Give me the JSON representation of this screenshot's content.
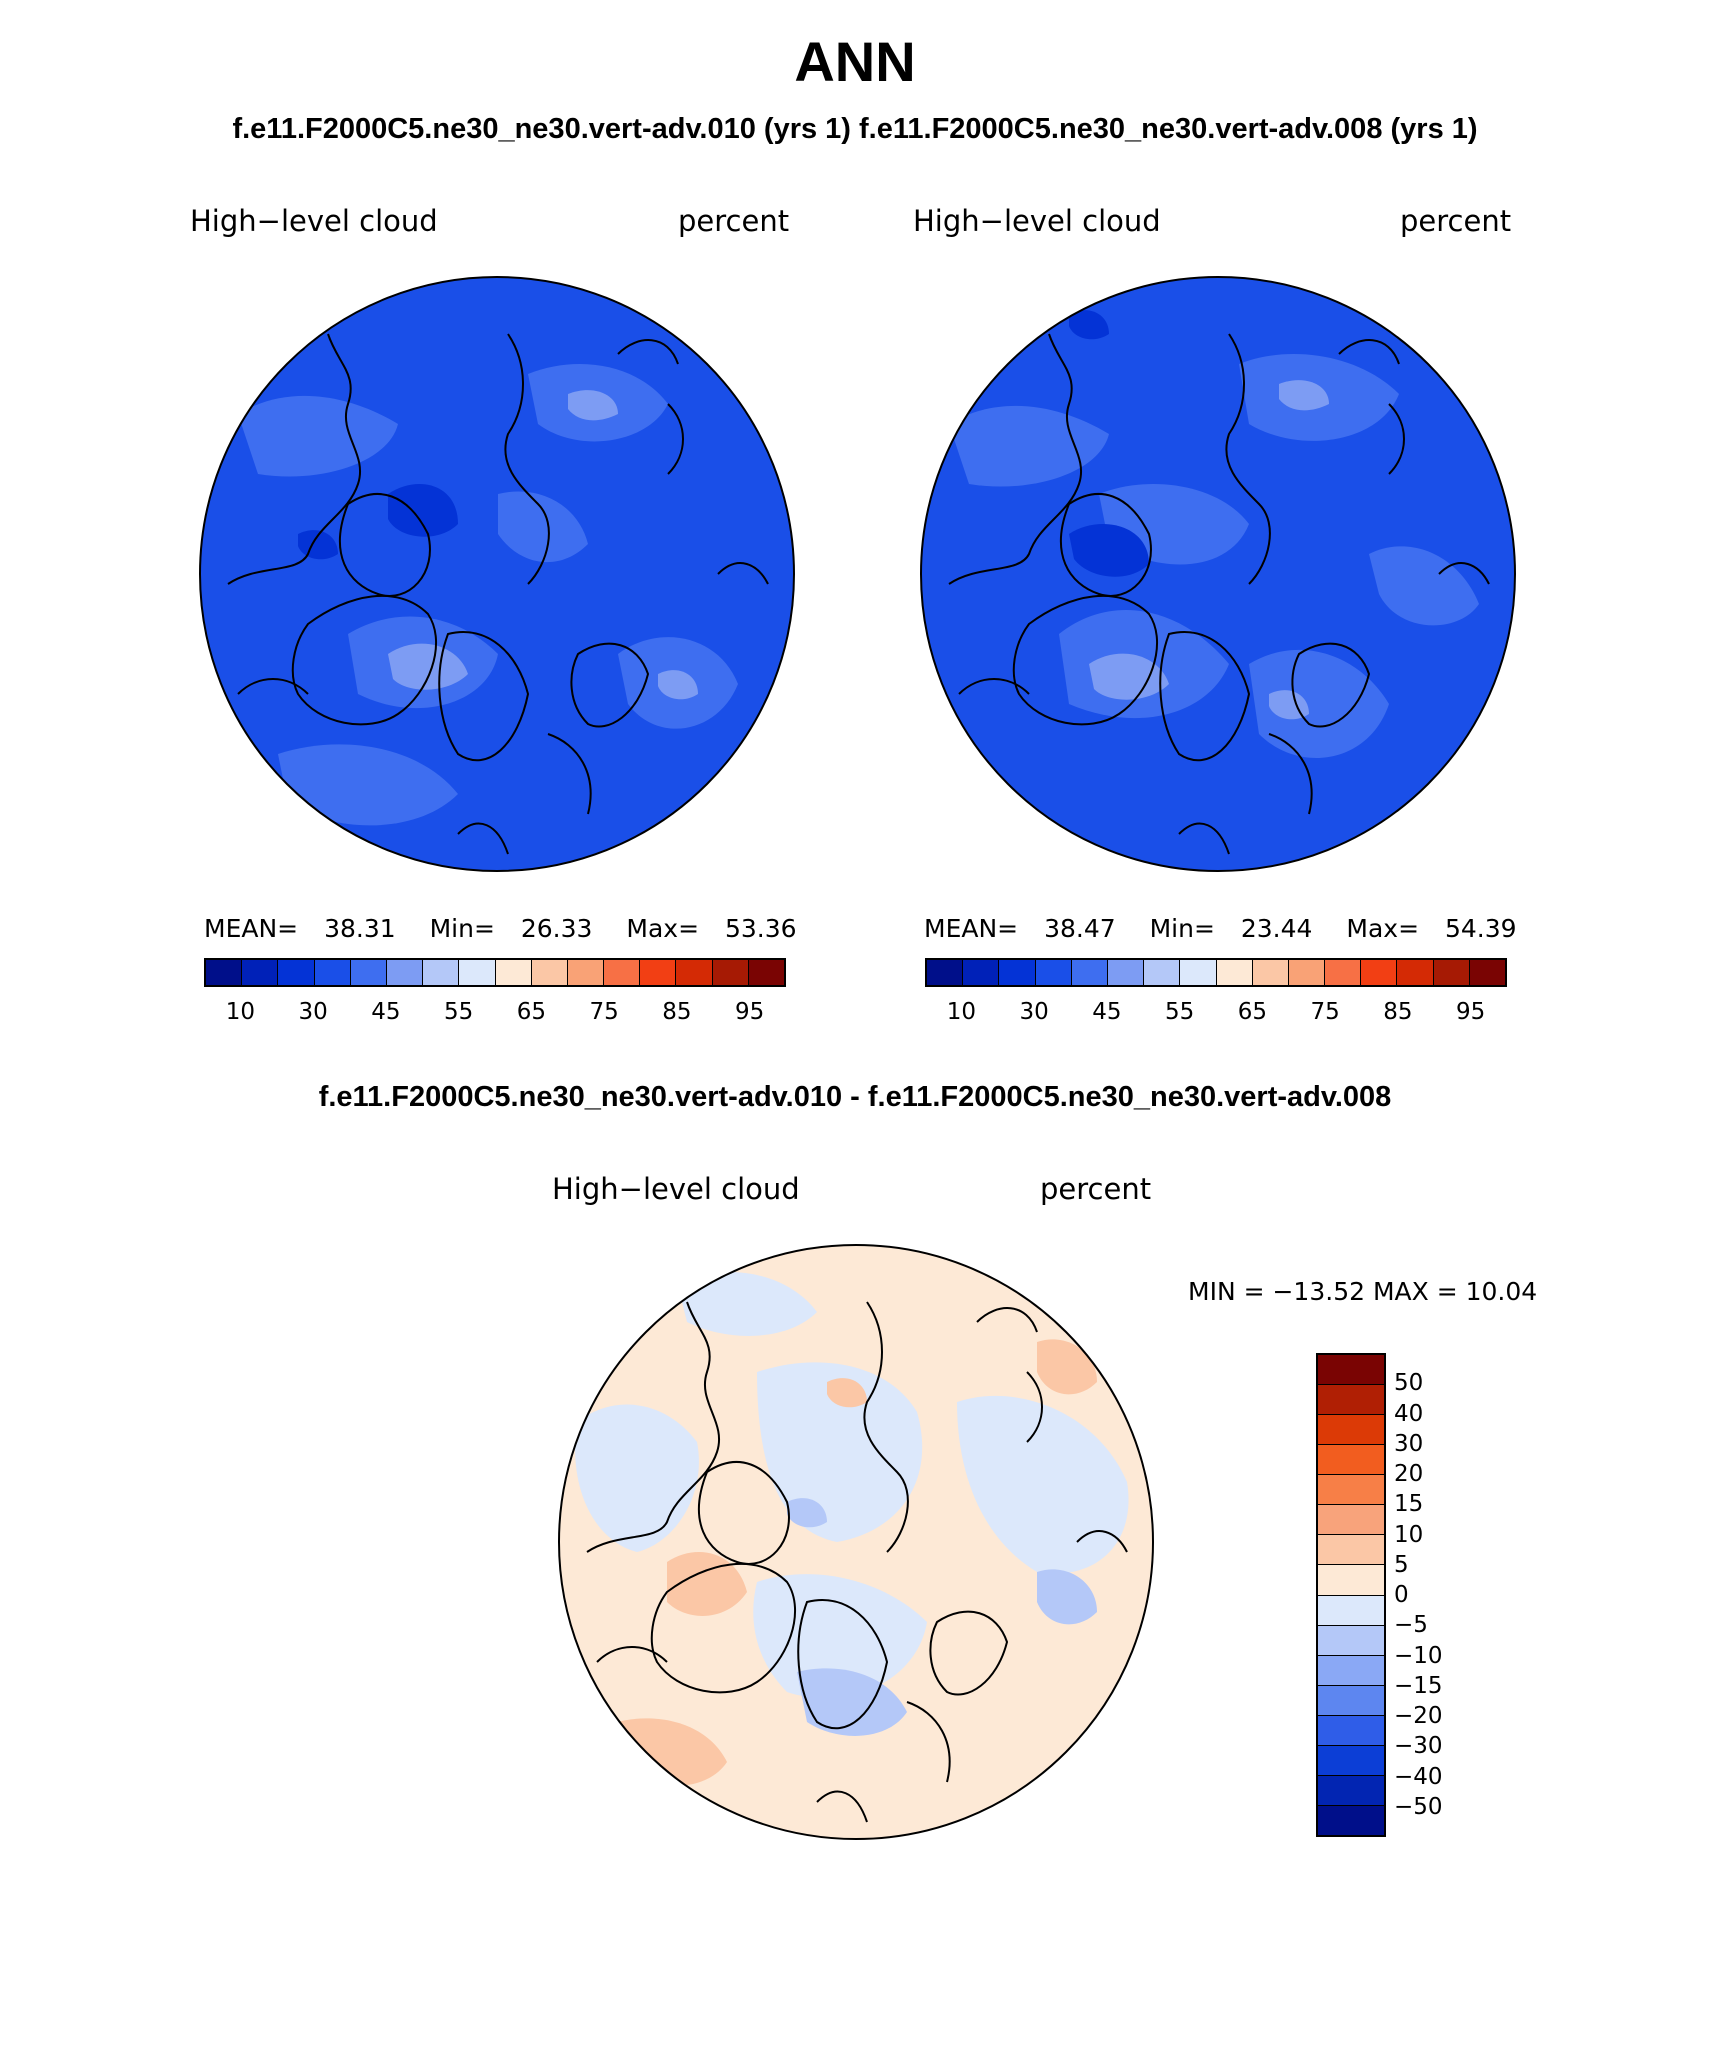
{
  "header": {
    "title": "ANN",
    "subtitle": "f.e11.F2000C5.ne30_ne30.vert-adv.010 (yrs 1)  f.e11.F2000C5.ne30_ne30.vert-adv.008 (yrs 1)"
  },
  "panel1": {
    "variable": "High−level cloud",
    "units": "percent",
    "mean_label": "MEAN=",
    "mean": "38.31",
    "min_label": "Min=",
    "min": "26.33",
    "max_label": "Max=",
    "max": "53.36"
  },
  "panel2": {
    "variable": "High−level cloud",
    "units": "percent",
    "mean_label": "MEAN=",
    "mean": "38.47",
    "min_label": "Min=",
    "min": "23.44",
    "max_label": "Max=",
    "max": "54.39"
  },
  "colorbar_abs": {
    "colors": [
      "#000f8a",
      "#0021b8",
      "#0433d6",
      "#1a4fe8",
      "#3e6ef0",
      "#7d9cf3",
      "#b4c8f8",
      "#dce8fb",
      "#fde9d6",
      "#fbc7a6",
      "#f9a276",
      "#f77045",
      "#f23f14",
      "#d42a05",
      "#a61a04",
      "#7a0403"
    ],
    "tick_labels": [
      "10",
      "30",
      "45",
      "55",
      "65",
      "75",
      "85",
      "95"
    ]
  },
  "diff_title": "f.e11.F2000C5.ne30_ne30.vert-adv.010 - f.e11.F2000C5.ne30_ne30.vert-adv.008",
  "panel_diff": {
    "variable": "High−level cloud",
    "units": "percent",
    "minmax_text": "MIN = −13.52  MAX =   10.04"
  },
  "colorbar_diff": {
    "colors_top_to_bottom": [
      "#7a0403",
      "#b01f04",
      "#dc3a06",
      "#f25d1f",
      "#f77f47",
      "#f8a37b",
      "#fbc7a6",
      "#fde9d6",
      "#dce8fb",
      "#b4c8f8",
      "#8aa8f5",
      "#5d86f0",
      "#2f5de8",
      "#0c3ed6",
      "#0225b2",
      "#000f8a"
    ],
    "tick_labels": [
      "50",
      "40",
      "30",
      "20",
      "15",
      "10",
      "5",
      "0",
      "−5",
      "−10",
      "−15",
      "−20",
      "−30",
      "−40",
      "−50"
    ]
  }
}
